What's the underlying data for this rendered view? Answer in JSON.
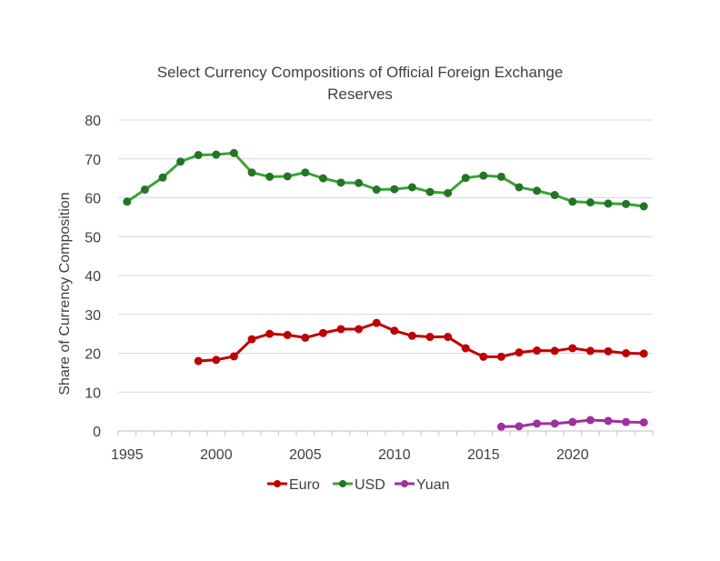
{
  "chart_data": {
    "type": "line",
    "title_lines": [
      "Select Currency Compositions of Official Foreign Exchange",
      "Reserves"
    ],
    "xlabel": "",
    "ylabel": "Share of Currency Composition",
    "xlim": [
      1994.5,
      2024.5
    ],
    "ylim": [
      0,
      80
    ],
    "y_ticks": [
      0,
      10,
      20,
      30,
      40,
      50,
      60,
      70,
      80
    ],
    "x_tick_labels": [
      1995,
      2000,
      2005,
      2010,
      2015,
      2020
    ],
    "grid": "horizontal",
    "legend_position": "bottom",
    "series": [
      {
        "name": "Euro",
        "color": "#c00000",
        "x": [
          1999,
          2000,
          2001,
          2002,
          2003,
          2004,
          2005,
          2006,
          2007,
          2008,
          2009,
          2010,
          2011,
          2012,
          2013,
          2014,
          2015,
          2016,
          2017,
          2018,
          2019,
          2020,
          2021,
          2022,
          2023,
          2024
        ],
        "values": [
          18,
          18.3,
          19.2,
          23.6,
          25.0,
          24.7,
          24.0,
          25.2,
          26.2,
          26.2,
          27.8,
          25.8,
          24.5,
          24.2,
          24.2,
          21.3,
          19.1,
          19.1,
          20.2,
          20.7,
          20.6,
          21.3,
          20.6,
          20.5,
          20.0,
          19.9
        ]
      },
      {
        "name": "USD",
        "color": "#3aa335",
        "marker_color": "#237524",
        "x": [
          1995,
          1996,
          1997,
          1998,
          1999,
          2000,
          2001,
          2002,
          2003,
          2004,
          2005,
          2006,
          2007,
          2008,
          2009,
          2010,
          2011,
          2012,
          2013,
          2014,
          2015,
          2016,
          2017,
          2018,
          2019,
          2020,
          2021,
          2022,
          2023,
          2024
        ],
        "values": [
          59.0,
          62.1,
          65.2,
          69.3,
          71.0,
          71.1,
          71.5,
          66.5,
          65.4,
          65.5,
          66.5,
          65.0,
          63.9,
          63.8,
          62.1,
          62.2,
          62.7,
          61.5,
          61.2,
          65.1,
          65.7,
          65.4,
          62.7,
          61.8,
          60.7,
          59.0,
          58.8,
          58.5,
          58.4,
          57.8
        ]
      },
      {
        "name": "Yuan",
        "color": "#a0309e",
        "x": [
          2016,
          2017,
          2018,
          2019,
          2020,
          2021,
          2022,
          2023,
          2024
        ],
        "values": [
          1.1,
          1.2,
          1.9,
          1.9,
          2.3,
          2.8,
          2.6,
          2.3,
          2.2
        ]
      }
    ]
  }
}
